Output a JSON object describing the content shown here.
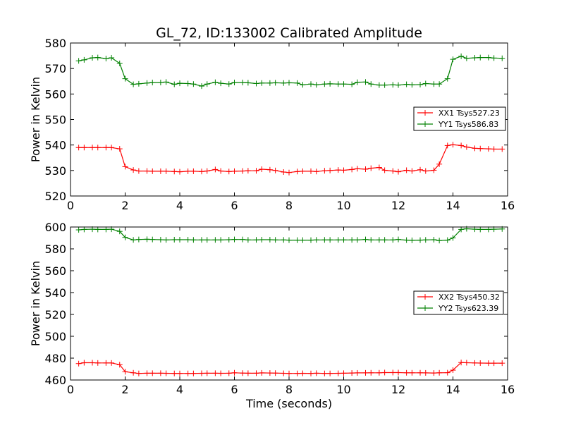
{
  "title": "GL_72, ID:133002 Calibrated Amplitude",
  "colors": {
    "xx": "#ff0000",
    "yy": "#008000"
  },
  "chart_data": [
    {
      "type": "line",
      "title": "GL_72, ID:133002 Calibrated Amplitude",
      "xlabel": "",
      "ylabel": "Power in Kelvin",
      "xlim": [
        0,
        16
      ],
      "ylim": [
        520,
        580
      ],
      "xticks": [
        "0",
        "2",
        "4",
        "6",
        "8",
        "10",
        "12",
        "14",
        "16"
      ],
      "yticks": [
        "520",
        "530",
        "540",
        "550",
        "560",
        "570",
        "580"
      ],
      "grid": false,
      "legend_position": "center-right",
      "x": [
        0.3,
        0.5,
        0.8,
        1.0,
        1.3,
        1.5,
        1.8,
        2.0,
        2.3,
        2.5,
        2.8,
        3.0,
        3.3,
        3.5,
        3.8,
        4.0,
        4.3,
        4.5,
        4.8,
        5.0,
        5.3,
        5.5,
        5.8,
        6.0,
        6.3,
        6.5,
        6.8,
        7.0,
        7.3,
        7.5,
        7.8,
        8.0,
        8.3,
        8.5,
        8.8,
        9.0,
        9.3,
        9.5,
        9.8,
        10.0,
        10.3,
        10.5,
        10.8,
        11.0,
        11.3,
        11.5,
        11.8,
        12.0,
        12.3,
        12.5,
        12.8,
        13.0,
        13.3,
        13.5,
        13.8,
        14.0,
        14.3,
        14.5,
        14.8,
        15.0,
        15.3,
        15.5,
        15.8
      ],
      "series": [
        {
          "name": "XX1 Tsys527.23",
          "color": "#ff0000",
          "values": [
            539.0,
            539.0,
            539.0,
            539.0,
            539.0,
            539.0,
            538.5,
            531.5,
            530.2,
            529.8,
            529.8,
            529.7,
            529.7,
            529.7,
            529.6,
            529.5,
            529.7,
            529.7,
            529.6,
            529.8,
            530.4,
            529.8,
            529.6,
            529.7,
            529.8,
            529.9,
            529.9,
            530.5,
            530.3,
            530.0,
            529.4,
            529.2,
            529.6,
            529.7,
            529.7,
            529.6,
            529.9,
            530.0,
            530.2,
            530.1,
            530.4,
            530.7,
            530.5,
            530.9,
            531.2,
            530.1,
            529.8,
            529.5,
            530.1,
            529.8,
            530.3,
            529.8,
            530.1,
            532.5,
            539.8,
            540.1,
            539.8,
            539.2,
            538.7,
            538.6,
            538.5,
            538.4,
            538.4
          ]
        },
        {
          "name": "YY1 Tsys586.83",
          "color": "#008000",
          "values": [
            573.0,
            573.4,
            574.2,
            574.3,
            573.9,
            574.2,
            572.0,
            566.0,
            563.8,
            564.0,
            564.3,
            564.5,
            564.5,
            564.7,
            563.8,
            564.2,
            564.1,
            563.9,
            563.1,
            563.9,
            564.6,
            564.2,
            563.9,
            564.5,
            564.5,
            564.4,
            564.1,
            564.3,
            564.3,
            564.4,
            564.3,
            564.4,
            564.3,
            563.6,
            563.9,
            563.6,
            563.9,
            564.0,
            563.9,
            563.9,
            563.8,
            564.6,
            564.7,
            563.9,
            563.5,
            563.5,
            563.6,
            563.5,
            563.8,
            563.6,
            563.7,
            564.1,
            563.9,
            563.9,
            566.0,
            573.6,
            574.8,
            574.0,
            574.2,
            574.3,
            574.3,
            574.1,
            574.0
          ]
        }
      ]
    },
    {
      "type": "line",
      "title": "",
      "xlabel": "Time (seconds)",
      "ylabel": "Power in Kelvin",
      "xlim": [
        0,
        16
      ],
      "ylim": [
        460,
        600
      ],
      "xticks": [
        "0",
        "2",
        "4",
        "6",
        "8",
        "10",
        "12",
        "14",
        "16"
      ],
      "yticks": [
        "460",
        "480",
        "500",
        "520",
        "540",
        "560",
        "580",
        "600"
      ],
      "grid": false,
      "legend_position": "center-right",
      "x": [
        0.3,
        0.5,
        0.8,
        1.0,
        1.3,
        1.5,
        1.8,
        2.0,
        2.3,
        2.5,
        2.8,
        3.0,
        3.3,
        3.5,
        3.8,
        4.0,
        4.3,
        4.5,
        4.8,
        5.0,
        5.3,
        5.5,
        5.8,
        6.0,
        6.3,
        6.5,
        6.8,
        7.0,
        7.3,
        7.5,
        7.8,
        8.0,
        8.3,
        8.5,
        8.8,
        9.0,
        9.3,
        9.5,
        9.8,
        10.0,
        10.3,
        10.5,
        10.8,
        11.0,
        11.3,
        11.5,
        11.8,
        12.0,
        12.3,
        12.5,
        12.8,
        13.0,
        13.3,
        13.5,
        13.8,
        14.0,
        14.3,
        14.5,
        14.8,
        15.0,
        15.3,
        15.5,
        15.8
      ],
      "series": [
        {
          "name": "XX2 Tsys450.32",
          "color": "#ff0000",
          "values": [
            475.0,
            475.8,
            475.8,
            475.6,
            475.6,
            475.6,
            474.0,
            467.6,
            466.6,
            466.0,
            466.2,
            466.2,
            466.2,
            466.1,
            466.0,
            466.0,
            466.0,
            466.0,
            466.1,
            466.2,
            466.2,
            466.1,
            466.2,
            466.6,
            466.3,
            466.2,
            466.2,
            466.5,
            466.4,
            466.3,
            466.1,
            466.0,
            466.0,
            466.1,
            466.0,
            466.2,
            466.0,
            466.0,
            466.1,
            466.2,
            466.4,
            466.5,
            466.5,
            466.6,
            466.6,
            466.8,
            466.8,
            466.8,
            466.6,
            466.6,
            466.6,
            466.5,
            466.4,
            466.6,
            466.7,
            469.0,
            476.0,
            475.8,
            475.6,
            475.5,
            475.4,
            475.4,
            475.4
          ]
        },
        {
          "name": "YY2 Tsys623.39",
          "color": "#008000",
          "values": [
            597.4,
            597.8,
            598.0,
            597.8,
            597.8,
            598.0,
            596.0,
            590.5,
            588.2,
            588.6,
            588.8,
            588.6,
            588.4,
            588.2,
            588.4,
            588.4,
            588.4,
            588.2,
            588.2,
            588.2,
            588.2,
            588.2,
            588.4,
            588.6,
            588.6,
            588.2,
            588.2,
            588.4,
            588.4,
            588.2,
            588.2,
            588.0,
            588.0,
            588.0,
            588.0,
            588.2,
            588.2,
            588.2,
            588.2,
            588.2,
            588.2,
            588.2,
            588.6,
            588.2,
            588.2,
            588.2,
            588.2,
            588.6,
            588.0,
            587.8,
            588.0,
            588.2,
            588.4,
            587.6,
            588.0,
            590.0,
            597.8,
            598.4,
            598.0,
            597.8,
            597.8,
            598.0,
            598.2
          ]
        }
      ]
    }
  ]
}
